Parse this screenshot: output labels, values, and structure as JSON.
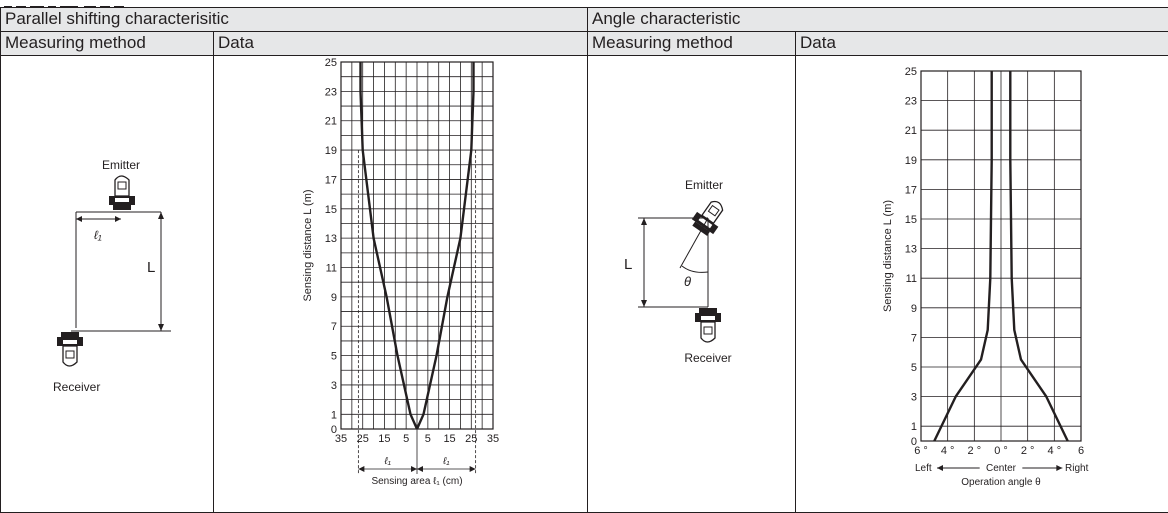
{
  "sections": [
    {
      "title": "Parallel shifting characterisitic",
      "method_label": "Measuring method",
      "data_label": "Data",
      "diagram": {
        "emitter_label": "Emitter",
        "receiver_label": "Receiver",
        "distance_label": "L",
        "offset_label": "ℓ₁"
      },
      "chart_data": {
        "type": "line",
        "title": "",
        "xlabel": "Sensing area ℓ₁ (cm)",
        "ylabel": "Sensing distance L (m)",
        "xlim": [
          -35,
          35
        ],
        "ylim": [
          0,
          25
        ],
        "x_ticks": [
          -35,
          -25,
          -15,
          -5,
          5,
          15,
          25,
          35
        ],
        "x_tick_labels": [
          "35",
          "25",
          "15",
          "5",
          "5",
          "15",
          "25",
          "35"
        ],
        "y_ticks": [
          0,
          1,
          3,
          5,
          7,
          9,
          11,
          13,
          15,
          17,
          19,
          21,
          23,
          25
        ],
        "grid": true,
        "series": [
          {
            "x": [
              0,
              -3,
              -9,
              -14,
              -20,
              -25,
              -26,
              -26
            ],
            "y": [
              0,
              1,
              5,
              9,
              13,
              19,
              23,
              25
            ]
          },
          {
            "x": [
              0,
              3,
              9,
              14,
              20,
              25,
              26,
              26
            ],
            "y": [
              0,
              1,
              5,
              9,
              13,
              19,
              23,
              25
            ]
          }
        ],
        "annotation_left": "ℓ₁",
        "annotation_right": "ℓ₁"
      }
    },
    {
      "title": "Angle characteristic",
      "method_label": "Measuring method",
      "data_label": "Data",
      "diagram": {
        "emitter_label": "Emitter",
        "receiver_label": "Receiver",
        "distance_label": "L",
        "angle_label": "θ"
      },
      "chart_data": {
        "type": "line",
        "title": "",
        "xlabel": "Operation angle θ",
        "ylabel": "Sensing distance L (m)",
        "xlim": [
          -6,
          6
        ],
        "ylim": [
          0,
          25
        ],
        "x_ticks": [
          -6,
          -4,
          -2,
          0,
          2,
          4,
          6
        ],
        "x_tick_labels": [
          "6",
          "4 °",
          "2 °",
          "0 °",
          "2 °",
          "4 °",
          "6"
        ],
        "x_degree_after": [
          "6 °",
          "",
          "",
          "",
          "",
          "",
          ""
        ],
        "y_ticks": [
          0,
          1,
          3,
          5,
          7,
          9,
          11,
          13,
          15,
          17,
          19,
          21,
          23,
          25
        ],
        "grid": true,
        "series": [
          {
            "x": [
              -5,
              -3.4,
              -1.5,
              -1,
              -0.8,
              -0.7,
              -0.7
            ],
            "y": [
              0,
              3,
              5.5,
              7.5,
              11,
              19,
              25
            ]
          },
          {
            "x": [
              5,
              3.4,
              1.5,
              1,
              0.8,
              0.7,
              0.7
            ],
            "y": [
              0,
              3,
              5.5,
              7.5,
              11,
              19,
              25
            ]
          }
        ],
        "direction_left": "Left",
        "direction_center": "Center",
        "direction_right": "Right"
      }
    }
  ]
}
